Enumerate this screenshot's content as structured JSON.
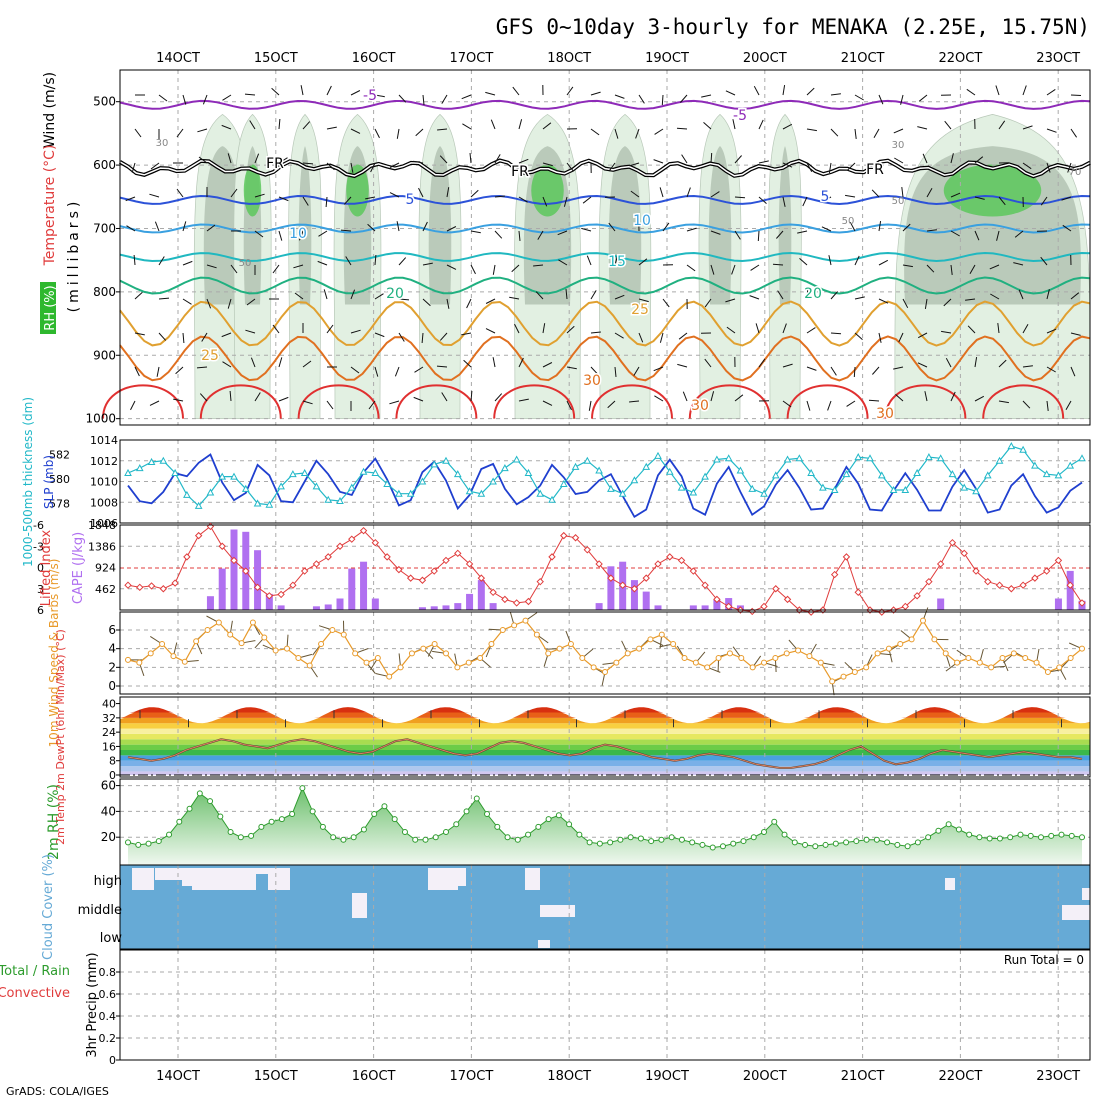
{
  "title": "GFS 0~10day 3-hourly for MENAKA (2.25E, 15.75N)",
  "credit": "GrADS: COLA/IGES",
  "dates": [
    "14OCT",
    "15OCT",
    "16OCT",
    "17OCT",
    "18OCT",
    "19OCT",
    "20OCT",
    "21OCT",
    "22OCT",
    "23OCT"
  ],
  "colors": {
    "frame": "#000000",
    "grid": "#aaaaaa",
    "slp": "#1f3fcf",
    "thickness": "#22b8c8",
    "lifted_index": "#e03c3c",
    "cape": "#b070f0",
    "wind": "#e89a2a",
    "rh": "#2e9c2e",
    "cloud": "#66aad6",
    "cloud_clear": "#f4f0f8"
  },
  "chart_data": [
    {
      "type": "heatmap",
      "panel": "upper-air",
      "ylabels": [
        "Wind (m/s)",
        "Temperature (°C)",
        "RH (%)",
        "(millibars)"
      ],
      "yticks": [
        500,
        600,
        700,
        800,
        900,
        1000
      ],
      "isotherm_labels": [
        "-5",
        "-5",
        "FR",
        "FR",
        "FR",
        "5",
        "5",
        "10",
        "10",
        "15",
        "20",
        "20",
        "25",
        "25",
        "30",
        "30",
        "30"
      ],
      "rh_labels": [
        "30",
        "30",
        "50",
        "50",
        "50",
        "70"
      ],
      "isotherms": [
        {
          "t": -5,
          "p": 505
        },
        {
          "t": 0,
          "p": 605
        },
        {
          "t": 5,
          "p": 655
        },
        {
          "t": 10,
          "p": 700
        },
        {
          "t": 15,
          "p": 745
        },
        {
          "t": 20,
          "p": 790
        },
        {
          "t": 25,
          "p": 850
        },
        {
          "t": 30,
          "p": 905
        }
      ]
    },
    {
      "type": "line",
      "panel": "slp-thickness",
      "ylabel_left": "1000-500mb thickness (dm)",
      "ylabel_right": "SLP (mb)",
      "yticks_left": [
        578,
        580,
        582
      ],
      "yticks_right": [
        1006,
        1008,
        1010,
        1012,
        1014
      ],
      "series": [
        {
          "name": "SLP (mb)",
          "values": [
            1009.6,
            1008.1,
            1007.9,
            1009.0,
            1010.8,
            1010.5,
            1011.8,
            1012.6,
            1009.9,
            1008.2,
            1008.9,
            1011.6,
            1010.6,
            1008.1,
            1008.0,
            1010.0,
            1012.0,
            1010.7,
            1009.0,
            1008.7,
            1010.9,
            1012.2,
            1010.2,
            1007.7,
            1008.2,
            1010.9,
            1011.9,
            1010.1,
            1007.4,
            1008.7,
            1011.2,
            1011.7,
            1009.3,
            1007.8,
            1008.5,
            1009.6,
            1011.6,
            1010.4,
            1008.8,
            1009.0,
            1010.1,
            1010.7,
            1008.6,
            1006.6,
            1007.3,
            1010.6,
            1012.1,
            1010.5,
            1007.4,
            1006.8,
            1009.8,
            1011.4,
            1009.0,
            1006.8,
            1007.6,
            1009.7,
            1011.1,
            1009.4,
            1007.3,
            1007.4,
            1009.3,
            1011.4,
            1009.8,
            1007.3,
            1007.2,
            1009.1,
            1010.8,
            1009.2,
            1007.2,
            1007.2,
            1009.5,
            1011.1,
            1009.3,
            1007.0,
            1007.3,
            1009.6,
            1010.7,
            1008.6,
            1007.0,
            1007.5,
            1009.1,
            1009.9
          ]
        },
        {
          "name": "1000-500mb thickness (dm)",
          "values": [
            580.5,
            580.9,
            581.4,
            581.5,
            580.5,
            578.7,
            577.8,
            578.9,
            580.2,
            580.2,
            579.2,
            578.0,
            577.9,
            579.4,
            580.4,
            580.5,
            579.4,
            578.3,
            578.2,
            579.3,
            580.6,
            580.5,
            579.6,
            578.8,
            578.8,
            579.8,
            581.2,
            581.5,
            580.4,
            579.0,
            578.8,
            579.8,
            580.9,
            581.6,
            580.5,
            578.8,
            578.3,
            579.6,
            581.0,
            581.5,
            580.7,
            579.2,
            578.8,
            579.9,
            581.0,
            581.9,
            580.6,
            579.3,
            578.9,
            580.2,
            581.6,
            581.7,
            580.7,
            579.2,
            578.8,
            580.3,
            581.6,
            581.7,
            580.5,
            579.3,
            579.1,
            580.4,
            581.8,
            581.7,
            580.3,
            579.1,
            579.1,
            580.5,
            581.8,
            581.7,
            580.4,
            579.3,
            579.0,
            580.3,
            581.5,
            582.7,
            582.4,
            581.1,
            580.4,
            580.3,
            581.1,
            581.7
          ]
        }
      ]
    },
    {
      "type": "bar",
      "panel": "cape-li",
      "ylabel_left": "Lifted Index",
      "ylabel_right": "CAPE (J/kg)",
      "yticks_left": [
        "6",
        "3",
        "0",
        "-3",
        "-6"
      ],
      "yticks_right": [
        "1848",
        "1386",
        "924",
        "462"
      ],
      "cape_values": [
        0,
        0,
        0,
        0,
        0,
        0,
        0,
        300,
        900,
        1750,
        1700,
        1300,
        350,
        100,
        0,
        0,
        80,
        120,
        250,
        900,
        1050,
        250,
        0,
        0,
        0,
        60,
        80,
        100,
        150,
        350,
        650,
        150,
        0,
        0,
        0,
        0,
        0,
        0,
        0,
        0,
        150,
        950,
        1050,
        650,
        400,
        100,
        0,
        0,
        100,
        100,
        220,
        260,
        100,
        0,
        0,
        0,
        0,
        0,
        0,
        0,
        0,
        0,
        0,
        0,
        0,
        0,
        0,
        0,
        0,
        250,
        0,
        0,
        0,
        0,
        0,
        0,
        0,
        0,
        0,
        250,
        850,
        200
      ],
      "li_values": [
        2.5,
        2.8,
        2.6,
        3.0,
        2.2,
        -1.5,
        -4.5,
        -5.8,
        -3.0,
        -1.0,
        0.5,
        2.8,
        4.0,
        3.8,
        2.5,
        0.5,
        -0.5,
        -1.5,
        -3.0,
        -4.0,
        -5.2,
        -3.5,
        -1.5,
        0.3,
        1.5,
        1.8,
        0.5,
        -1.0,
        -2.0,
        -0.5,
        1.5,
        3.5,
        4.5,
        5.0,
        4.8,
        2.0,
        -1.5,
        -4.5,
        -4.2,
        -2.5,
        -0.5,
        1.5,
        2.5,
        3.0,
        1.5,
        -0.5,
        -1.5,
        -1.0,
        0.5,
        2.5,
        4.5,
        5.5,
        6.0,
        6.2,
        5.5,
        3.0,
        4.5,
        6.0,
        6.3,
        6.0,
        1.0,
        -1.5,
        3.5,
        6.0,
        6.3,
        6.0,
        5.5,
        4.0,
        2.0,
        -0.5,
        -3.5,
        -2.0,
        0.5,
        2.0,
        2.5,
        3.0,
        2.5,
        1.5,
        0.5,
        -1.0,
        2.5,
        5.0
      ]
    },
    {
      "type": "line",
      "panel": "wind10m",
      "ylabel": "10m Wind Speed & Barbs (m/s)",
      "yticks": [
        0,
        2,
        4,
        6
      ],
      "values": [
        2.8,
        2.5,
        3.5,
        4.5,
        3.2,
        2.6,
        4.8,
        6.0,
        6.8,
        5.5,
        4.6,
        6.8,
        5.2,
        3.8,
        4.0,
        3.0,
        2.2,
        4.5,
        6.0,
        5.5,
        3.5,
        2.5,
        3.0,
        1.0,
        2.0,
        3.5,
        4.0,
        4.5,
        3.5,
        2.0,
        2.5,
        3.0,
        4.5,
        6.0,
        6.5,
        7.0,
        5.5,
        3.5,
        4.0,
        4.5,
        3.0,
        2.0,
        1.5,
        2.5,
        3.5,
        4.0,
        5.0,
        5.5,
        4.5,
        3.0,
        2.5,
        2.0,
        3.0,
        3.5,
        3.0,
        2.0,
        2.5,
        3.0,
        3.5,
        3.8,
        3.2,
        2.5,
        0.5,
        1.0,
        1.5,
        2.0,
        3.5,
        4.0,
        4.5,
        5.0,
        7.0,
        5.0,
        3.5,
        2.5,
        3.0,
        2.5,
        2.0,
        3.0,
        3.5,
        3.0,
        2.5,
        1.5,
        2.0,
        3.0,
        4.0
      ]
    },
    {
      "type": "area",
      "panel": "temp2m",
      "ylabel": "2m Temp 2m DewPt (6hr Min/Max) (°C)",
      "yticks": [
        0,
        8,
        16,
        24,
        32,
        40
      ],
      "temp_min": 29,
      "temp_max": 38,
      "dewpoint": [
        10,
        9,
        8,
        9,
        11,
        14,
        16,
        18,
        20,
        19,
        17,
        16,
        15,
        17,
        19,
        20,
        19,
        17,
        15,
        13,
        12,
        13,
        16,
        19,
        20,
        18,
        16,
        14,
        12,
        11,
        12,
        15,
        18,
        19,
        18,
        16,
        14,
        12,
        11,
        12,
        15,
        17,
        16,
        14,
        12,
        10,
        9,
        8,
        9,
        11,
        12,
        11,
        10,
        8,
        6,
        5,
        4,
        4,
        5,
        6,
        8,
        11,
        14,
        16,
        12,
        8,
        6,
        7,
        9,
        12,
        14,
        13,
        12,
        11,
        10,
        11,
        12,
        13,
        12,
        11,
        10,
        10,
        9
      ]
    },
    {
      "type": "area",
      "panel": "rh2m",
      "ylabel": "2m RH (%)",
      "yticks": [
        20,
        40,
        60
      ],
      "values": [
        16,
        14,
        15,
        17,
        22,
        32,
        42,
        54,
        48,
        36,
        24,
        20,
        21,
        28,
        32,
        34,
        38,
        58,
        40,
        28,
        20,
        18,
        20,
        26,
        38,
        44,
        34,
        24,
        18,
        18,
        20,
        24,
        30,
        40,
        50,
        38,
        28,
        20,
        18,
        22,
        28,
        34,
        37,
        30,
        22,
        16,
        15,
        16,
        18,
        20,
        19,
        17,
        18,
        20,
        18,
        16,
        14,
        12,
        13,
        15,
        17,
        20,
        24,
        32,
        22,
        16,
        14,
        13,
        14,
        15,
        16,
        17,
        18,
        18,
        16,
        14,
        13,
        16,
        20,
        25,
        30,
        26,
        22,
        20,
        19,
        19,
        20,
        22,
        21,
        20,
        21,
        22,
        21,
        20
      ]
    },
    {
      "type": "heatmap",
      "panel": "cloud",
      "ylabel": "Cloud Cover (%)",
      "levels": [
        "high",
        "middle",
        "low"
      ]
    },
    {
      "type": "bar",
      "panel": "precip",
      "ylabel": "3hr Precip (mm)",
      "legend": [
        "Total / Rain",
        "Convective"
      ],
      "yticks": [
        0,
        0.2,
        0.4,
        0.6,
        0.8
      ],
      "ylim": [
        0,
        1
      ],
      "note": "Run Total = 0",
      "values": []
    }
  ]
}
